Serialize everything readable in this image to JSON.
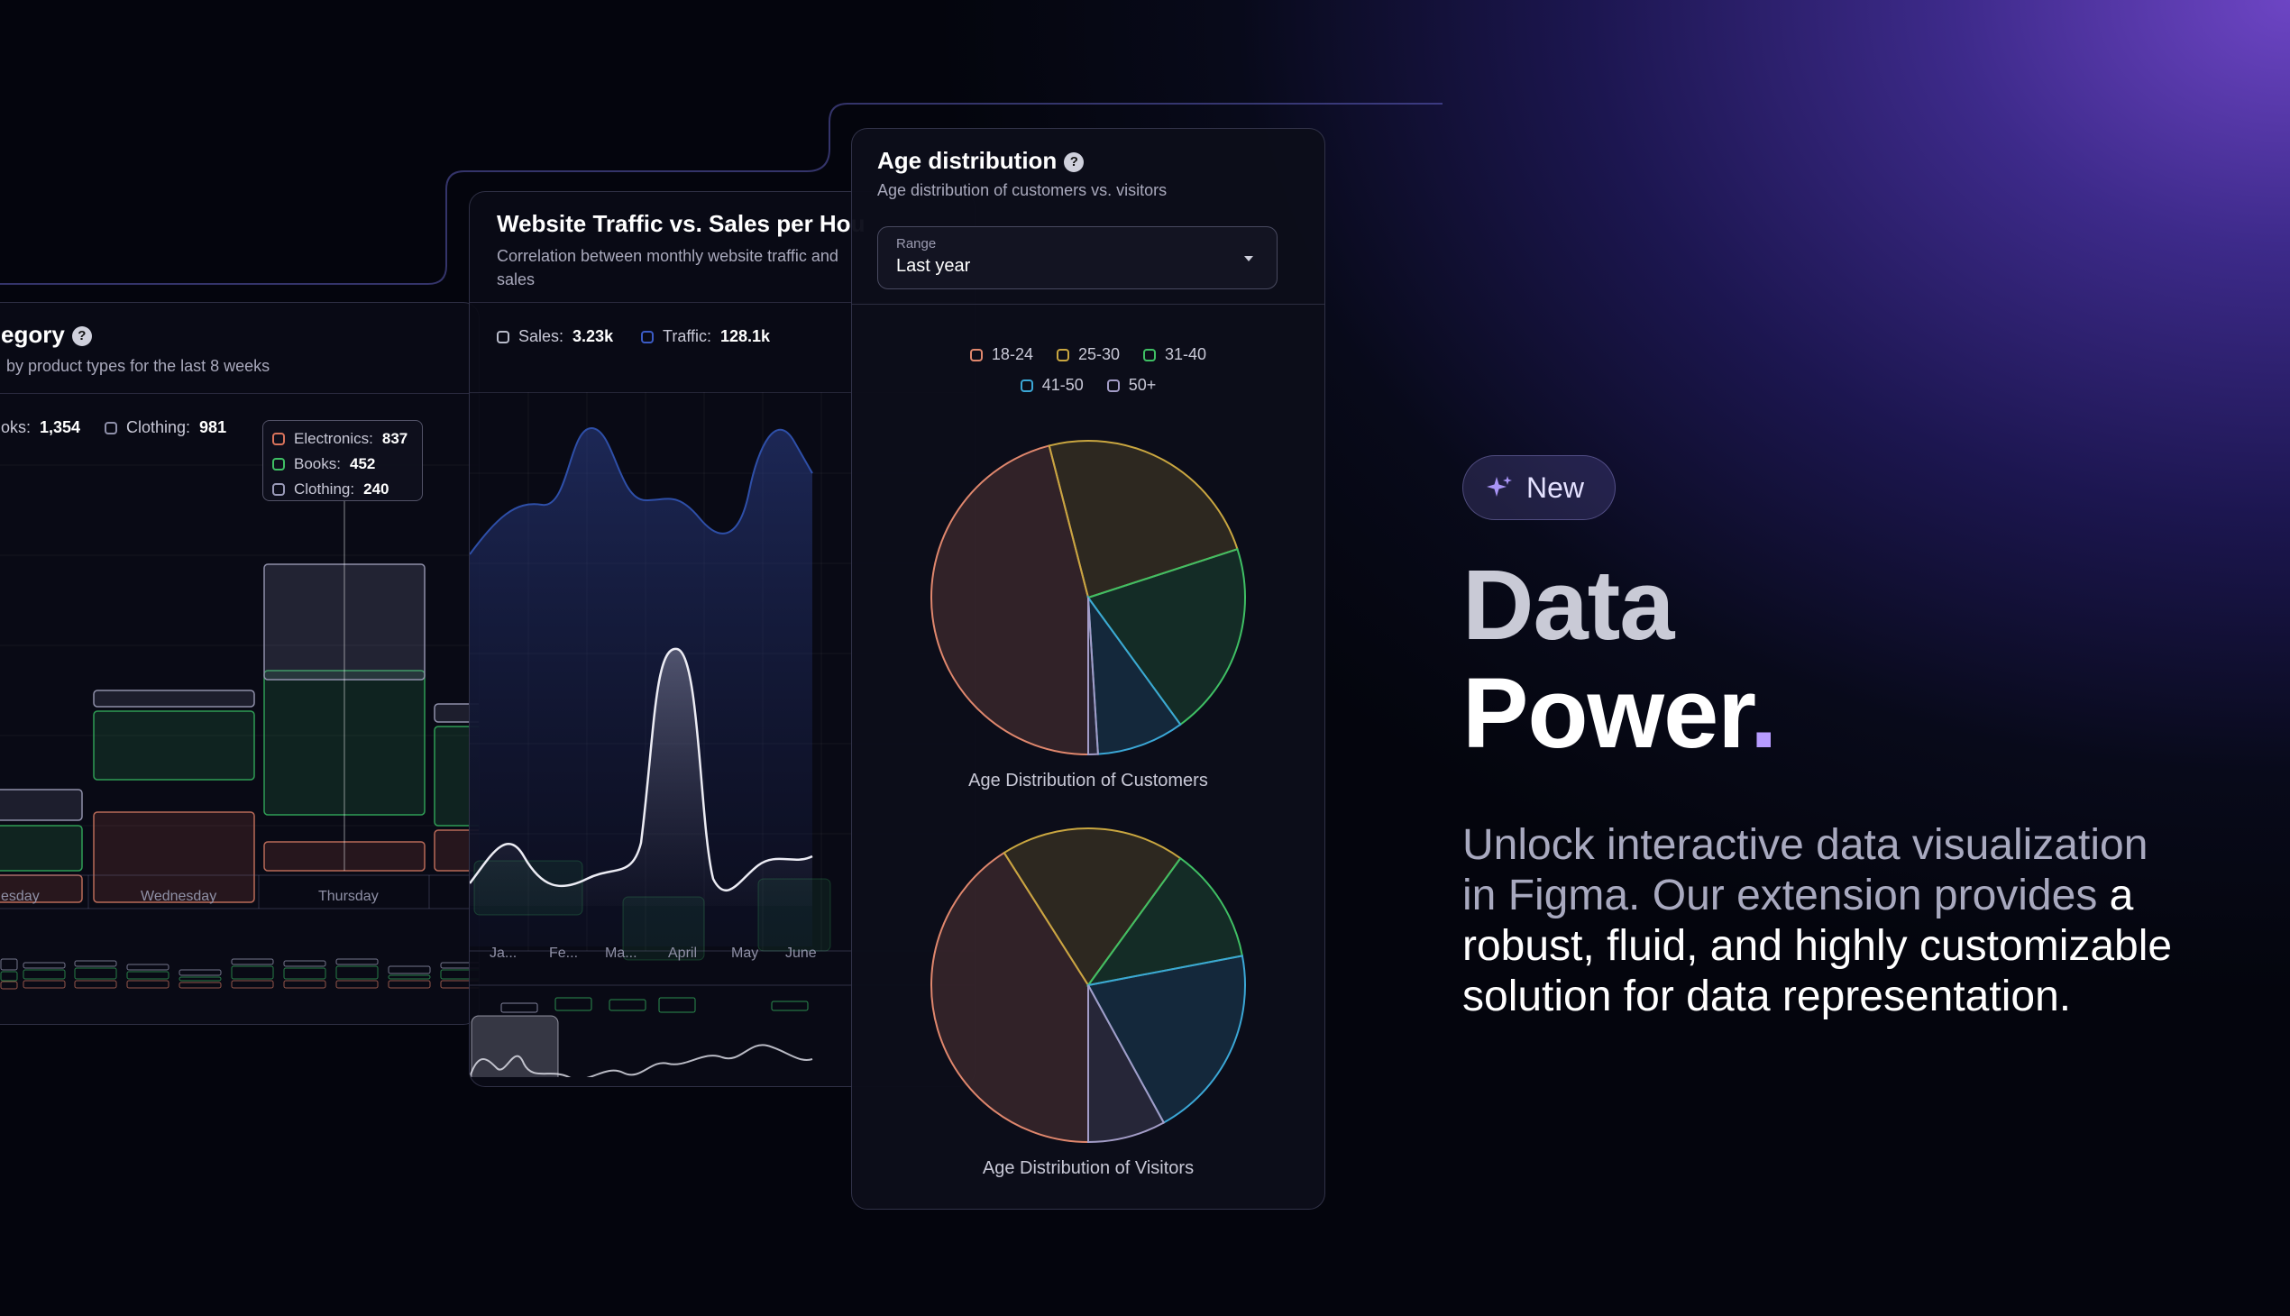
{
  "hero": {
    "badge": "New",
    "title_line1": "Data",
    "title_line2": "Power",
    "title_dot": ".",
    "desc_a": "Unlock interactive data visualization in Figma. Our extension provides ",
    "desc_b": "a robust, fluid, and highly customizable solution for data representation."
  },
  "card_category": {
    "title": "egory",
    "subtitle": "by product types for the last 8 weeks",
    "legend": [
      {
        "label": "oks:",
        "value": "1,354",
        "color": "#7a7c95"
      },
      {
        "label": "Clothing:",
        "value": "981",
        "color": "#8f90aa"
      }
    ],
    "tooltip": [
      {
        "label": "Electronics:",
        "value": "837",
        "color": "#d9735b"
      },
      {
        "label": "Books:",
        "value": "452",
        "color": "#3fbf64"
      },
      {
        "label": "Clothing:",
        "value": "240",
        "color": "#9a9ab8"
      }
    ],
    "x_ticks": [
      "esday",
      "Wednesday",
      "Thursday"
    ]
  },
  "card_traffic": {
    "title": "Website Traffic vs. Sales per Hou",
    "subtitle_line1": "Correlation between monthly website traffic and",
    "subtitle_line2": "sales",
    "legend": [
      {
        "label": "Sales:",
        "value": "3.23k",
        "color": "#b9bccb"
      },
      {
        "label": "Traffic:",
        "value": "128.1k",
        "color": "#3b5bc4"
      }
    ],
    "x_ticks": [
      "Ja...",
      "Fe...",
      "Ma...",
      "April",
      "May",
      "June"
    ]
  },
  "card_age": {
    "title": "Age distribution",
    "subtitle": "Age distribution of customers vs. visitors",
    "range_label": "Range",
    "range_value": "Last year",
    "legend": [
      {
        "label": "18-24",
        "color": "#e0876d"
      },
      {
        "label": "25-30",
        "color": "#c9a640"
      },
      {
        "label": "31-40",
        "color": "#3fbf64"
      },
      {
        "label": "41-50",
        "color": "#3ba7d6"
      },
      {
        "label": "50+",
        "color": "#a39cc7"
      }
    ],
    "pie1_label": "Age Distribution of Customers",
    "pie2_label": "Age Distribution of Visitors"
  },
  "chart_data": [
    {
      "type": "pie",
      "title": "Age Distribution of Customers",
      "categories": [
        "18-24",
        "25-30",
        "31-40",
        "41-50",
        "50+"
      ],
      "values": [
        46,
        24,
        20,
        9,
        1
      ]
    },
    {
      "type": "pie",
      "title": "Age Distribution of Visitors",
      "categories": [
        "18-24",
        "25-30",
        "31-40",
        "41-50",
        "50+"
      ],
      "values": [
        41,
        19,
        12,
        20,
        8
      ]
    }
  ]
}
